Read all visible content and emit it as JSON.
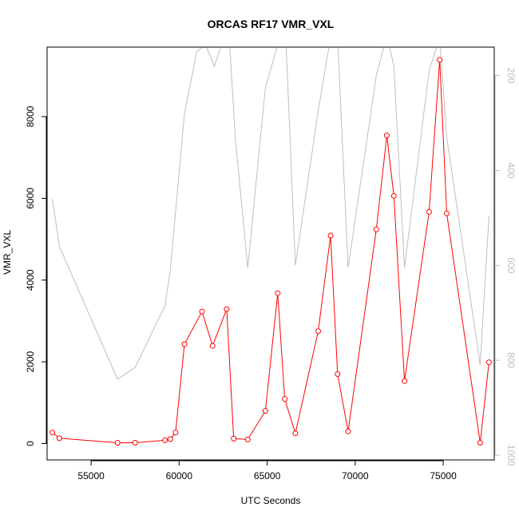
{
  "chart_data": {
    "type": "line",
    "title": "ORCAS RF17 VMR_VXL",
    "xlabel": "UTC Seconds",
    "ylabel": "VMR_VXL",
    "xlim": [
      52500,
      77900
    ],
    "ylim": [
      -400,
      9700
    ],
    "x_ticks": [
      55000,
      60000,
      65000,
      70000,
      75000
    ],
    "x_tick_labels": [
      "55000",
      "60000",
      "65000",
      "70000",
      "75000"
    ],
    "y_ticks": [
      0,
      2000,
      4000,
      6000,
      8000
    ],
    "y_tick_labels": [
      "0",
      "2000",
      "4000",
      "6000",
      "8000"
    ],
    "y2_reversed": true,
    "y2lim": [
      1010,
      140
    ],
    "y2_ticks": [
      200,
      400,
      600,
      800,
      1000
    ],
    "y2_tick_labels": [
      "200",
      "400",
      "600",
      "800",
      "1000"
    ],
    "grid": false,
    "series": [
      {
        "axis": "left",
        "color": "#ff0000",
        "marker": "open-circle",
        "x": [
          52800,
          53200,
          56500,
          57500,
          59200,
          59500,
          59800,
          60300,
          61300,
          61900,
          62700,
          63100,
          63900,
          64900,
          65600,
          66000,
          66600,
          67900,
          68600,
          69000,
          69600,
          71200,
          71800,
          72200,
          72800,
          74200,
          74800,
          75200,
          77100,
          77600
        ],
        "values": [
          270,
          130,
          20,
          20,
          80,
          110,
          270,
          2430,
          3230,
          2390,
          3290,
          120,
          100,
          800,
          3680,
          1090,
          250,
          2750,
          5090,
          1700,
          300,
          5240,
          7540,
          6060,
          1530,
          5670,
          9390,
          5630,
          20,
          1990
        ]
      },
      {
        "axis": "right",
        "color": "#bebebe",
        "marker": "none",
        "x": [
          52800,
          53200,
          56500,
          57500,
          59200,
          59500,
          60300,
          61000,
          61500,
          62000,
          62800,
          63200,
          63900,
          64900,
          65600,
          66000,
          66600,
          67900,
          68600,
          69000,
          69600,
          71200,
          71800,
          72200,
          72800,
          74200,
          74800,
          75200,
          77100,
          77600
        ],
        "values": [
          460,
          560,
          840,
          815,
          685,
          610,
          280,
          150,
          135,
          180,
          95,
          335,
          605,
          225,
          135,
          65,
          600,
          275,
          120,
          120,
          605,
          200,
          115,
          180,
          605,
          190,
          120,
          330,
          810,
          495
        ]
      }
    ]
  }
}
